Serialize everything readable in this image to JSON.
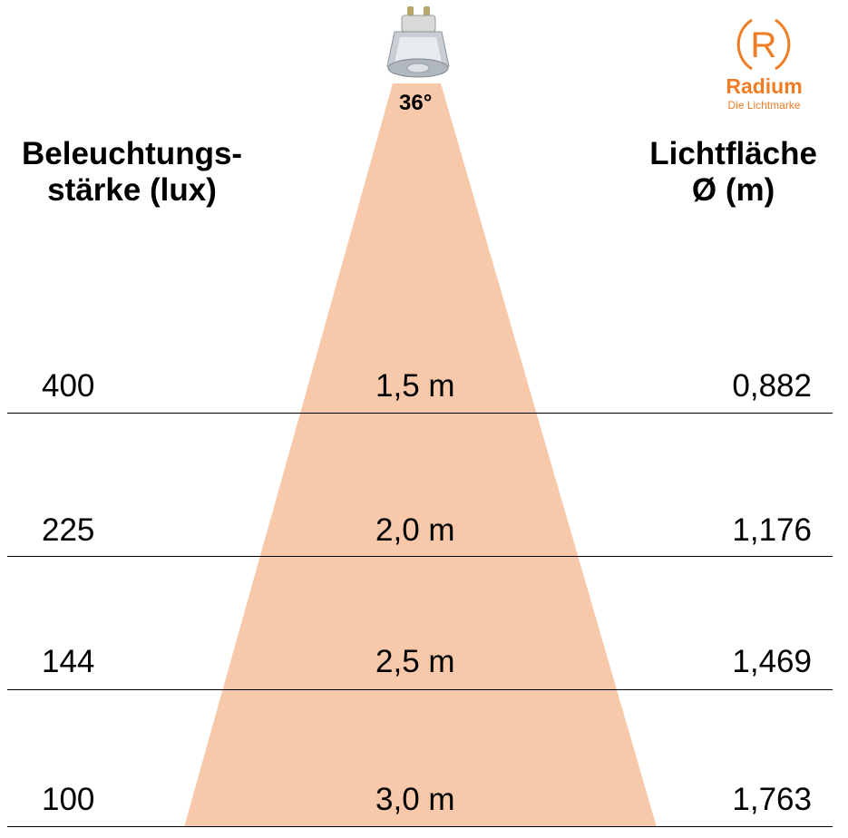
{
  "brand": {
    "name": "Radium",
    "tagline": "Die Lichtmarke",
    "mark": "R",
    "color": "#f07c24"
  },
  "beam_angle": "36°",
  "headers": {
    "left_line1": "Beleuchtungs-",
    "left_line2": "stärke (lux)",
    "right_line1": "Lichtfläche",
    "right_line2": "Ø (m)"
  },
  "rows": [
    {
      "lux": "400",
      "distance": "1,5 m",
      "diameter": "0,882"
    },
    {
      "lux": "225",
      "distance": "2,0 m",
      "diameter": "1,176"
    },
    {
      "lux": "144",
      "distance": "2,5 m",
      "diameter": "1,469"
    },
    {
      "lux": "100",
      "distance": "3,0 m",
      "diameter": "1,763"
    }
  ],
  "colors": {
    "beam": "#f7c9aa",
    "lines": "#000000"
  },
  "icons": {
    "bulb": "gu10-led-bulb-icon",
    "logo": "radium-logo-icon"
  }
}
